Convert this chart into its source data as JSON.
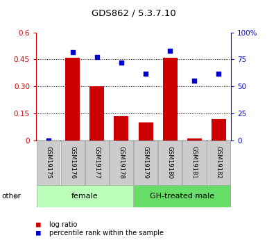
{
  "title": "GDS862 / 5.3.7.10",
  "samples": [
    "GSM19175",
    "GSM19176",
    "GSM19177",
    "GSM19178",
    "GSM19179",
    "GSM19180",
    "GSM19181",
    "GSM19182"
  ],
  "log_ratio": [
    0.0,
    0.46,
    0.3,
    0.135,
    0.1,
    0.46,
    0.01,
    0.12
  ],
  "percentile_rank": [
    0.0,
    0.82,
    0.77,
    0.72,
    0.62,
    0.83,
    0.55,
    0.62
  ],
  "groups": [
    {
      "label": "female",
      "start": 0,
      "end": 4,
      "color": "#bbffbb"
    },
    {
      "label": "GH-treated male",
      "start": 4,
      "end": 8,
      "color": "#66dd66"
    }
  ],
  "bar_color": "#cc0000",
  "dot_color": "#0000cc",
  "ylim_left": [
    0,
    0.6
  ],
  "ylim_right": [
    0,
    1.0
  ],
  "yticks_left": [
    0,
    0.15,
    0.3,
    0.45,
    0.6
  ],
  "yticks_right": [
    0,
    0.25,
    0.5,
    0.75,
    1.0
  ],
  "ytick_labels_left": [
    "0",
    "0.15",
    "0.30",
    "0.45",
    "0.6"
  ],
  "ytick_labels_right": [
    "0",
    "25",
    "50",
    "75",
    "100%"
  ],
  "left_axis_color": "#cc0000",
  "right_axis_color": "#0000cc",
  "legend_items": [
    {
      "label": "log ratio",
      "color": "#cc0000"
    },
    {
      "label": "percentile rank within the sample",
      "color": "#0000cc"
    }
  ],
  "bar_width": 0.6,
  "sample_box_color": "#cccccc",
  "sample_box_edge": "#999999"
}
